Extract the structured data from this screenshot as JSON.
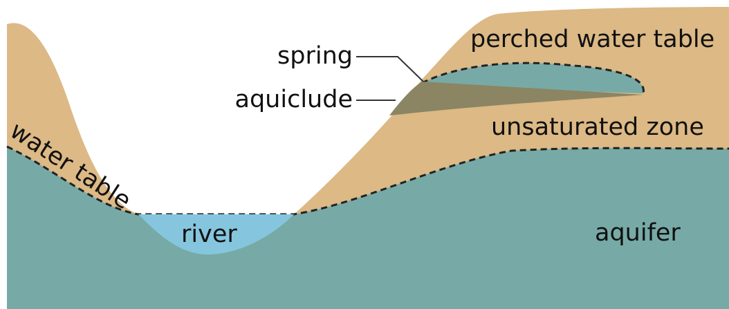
{
  "labels": {
    "perched_water_table": "perched water table",
    "spring": "spring",
    "aquiclude": "aquiclude",
    "unsaturated_zone": "unsaturated zone",
    "water_table": "water table",
    "river": "river",
    "aquifer": "aquifer"
  }
}
